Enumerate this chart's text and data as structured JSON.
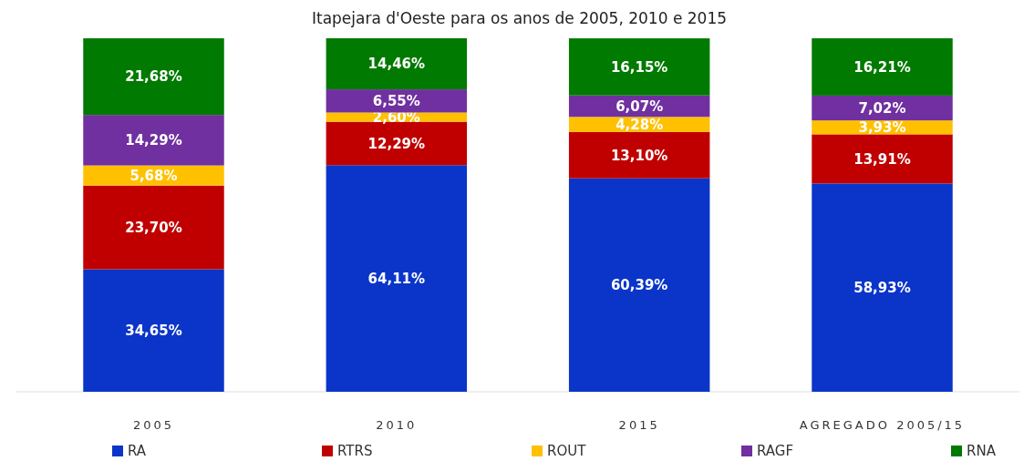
{
  "chart_data": {
    "type": "bar",
    "title": "Itapejara d'Oeste para os anos de 2005, 2010 e 2015",
    "stacked": true,
    "legend": "bottom",
    "categories": [
      "2005",
      "2010",
      "2015",
      "AGREGADO 2005/15"
    ],
    "series": [
      {
        "name": "RA",
        "color": "#0b35c9",
        "values": [
          34.65,
          64.11,
          60.39,
          58.93
        ],
        "value_labels": [
          "34,65%",
          "64,11%",
          "60,39%",
          "58,93%"
        ]
      },
      {
        "name": "RTRS",
        "color": "#c00000",
        "values": [
          23.7,
          12.29,
          13.1,
          13.91
        ],
        "value_labels": [
          "23,70%",
          "12,29%",
          "13,10%",
          "13,91%"
        ]
      },
      {
        "name": "ROUT",
        "color": "#ffc000",
        "values": [
          5.68,
          2.6,
          4.28,
          3.93
        ],
        "value_labels": [
          "5,68%",
          "2,60%",
          "4,28%",
          "3,93%"
        ]
      },
      {
        "name": "RAGF",
        "color": "#7030a0",
        "values": [
          14.29,
          6.55,
          6.07,
          7.02
        ],
        "value_labels": [
          "14,29%",
          "6,55%",
          "6,07%",
          "7,02%"
        ]
      },
      {
        "name": "RNA",
        "color": "#007a00",
        "values": [
          21.68,
          14.46,
          16.15,
          16.21
        ],
        "value_labels": [
          "21,68%",
          "14,46%",
          "16,15%",
          "16,21%"
        ]
      }
    ]
  }
}
